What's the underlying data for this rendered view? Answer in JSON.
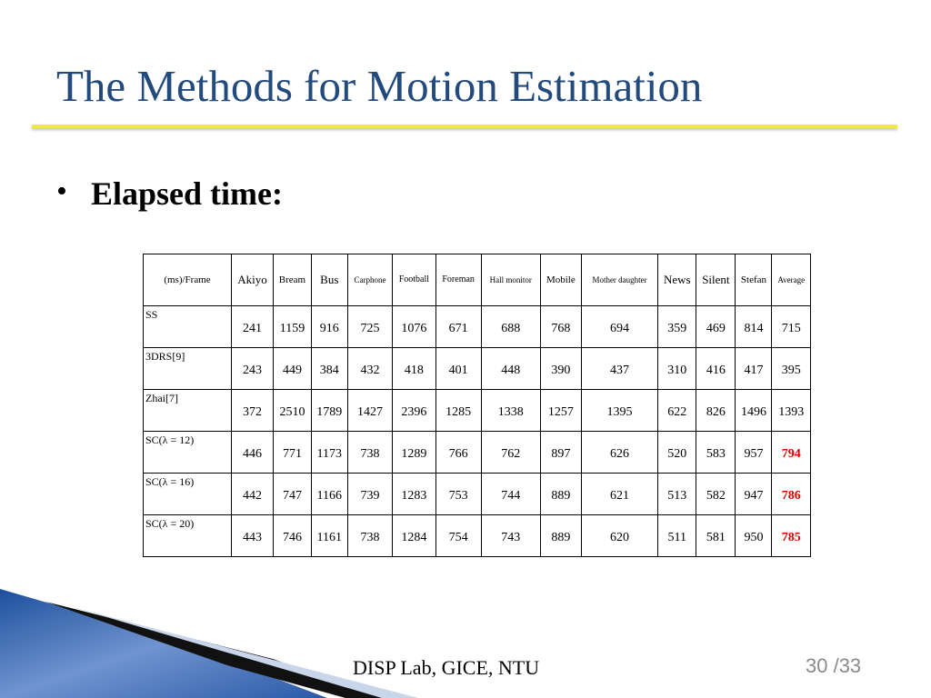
{
  "title": "The Methods for Motion Estimation",
  "bullet": "Elapsed time:",
  "table": {
    "header": [
      "(ms)/Frame",
      "Akiyo",
      "Bream",
      "Bus",
      "Carphone",
      "Football",
      "Foreman",
      "Hall monitor",
      "Mobile",
      "Mother daughter",
      "News",
      "Silent",
      "Stefan",
      "Average"
    ],
    "rows": [
      {
        "label": "SS",
        "values": [
          241,
          1159,
          916,
          725,
          1076,
          671,
          688,
          768,
          694,
          359,
          469,
          814,
          715
        ]
      },
      {
        "label": "3DRS[9]",
        "values": [
          243,
          449,
          384,
          432,
          418,
          401,
          448,
          390,
          437,
          310,
          416,
          417,
          395
        ]
      },
      {
        "label": "Zhai[7]",
        "values": [
          372,
          2510,
          1789,
          1427,
          2396,
          1285,
          1338,
          1257,
          1395,
          622,
          826,
          1496,
          1393
        ]
      },
      {
        "label": "SC(λ = 12)",
        "values": [
          446,
          771,
          1173,
          738,
          1289,
          766,
          762,
          897,
          626,
          520,
          583,
          957,
          794
        ]
      },
      {
        "label": "SC(λ = 16)",
        "values": [
          442,
          747,
          1166,
          739,
          1283,
          753,
          744,
          889,
          621,
          513,
          582,
          947,
          786
        ]
      },
      {
        "label": "SC(λ = 20)",
        "values": [
          443,
          746,
          1161,
          738,
          1284,
          754,
          743,
          889,
          620,
          511,
          581,
          950,
          785
        ]
      }
    ]
  },
  "footer": "DISP Lab, GICE, NTU",
  "page_number": "30 /33"
}
